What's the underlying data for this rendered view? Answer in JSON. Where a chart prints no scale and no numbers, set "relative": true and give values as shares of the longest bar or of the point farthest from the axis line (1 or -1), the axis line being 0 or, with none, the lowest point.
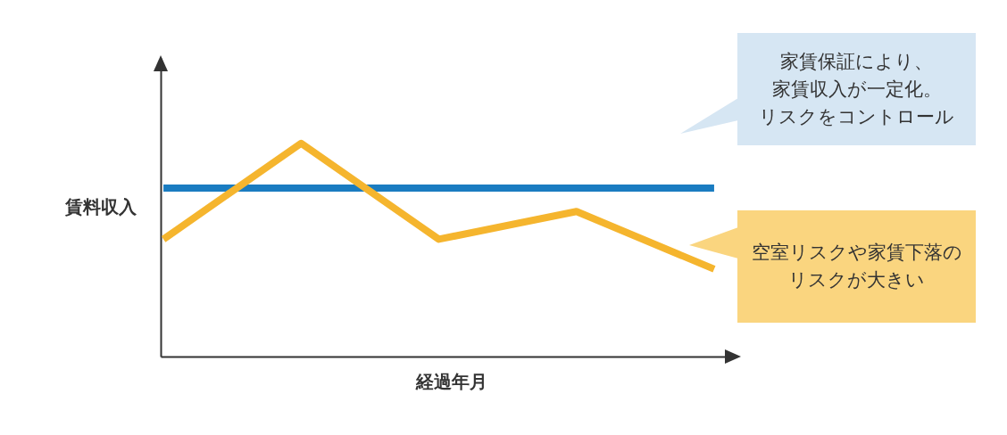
{
  "chart_data": {
    "type": "line",
    "relative": true,
    "xlabel": "経過年月",
    "ylabel": "賃料収入",
    "categories": [
      null,
      null,
      null,
      null,
      null
    ],
    "series": [
      {
        "color": "#1a7cc1",
        "values": [
          0.79,
          0.79,
          0.79,
          0.79,
          0.79
        ]
      },
      {
        "color": "#f5b52e",
        "values": [
          0.55,
          1,
          0.55,
          0.68,
          0.41
        ]
      }
    ],
    "annotations": [
      "家賃保証により、家賃収入が一定化。リスクをコントロール",
      "空室リスクや家賃下落のリスクが大きい"
    ],
    "tick_labels": false,
    "grid": false,
    "legend": false,
    "marker": "none",
    "line_style": "solid"
  }
}
